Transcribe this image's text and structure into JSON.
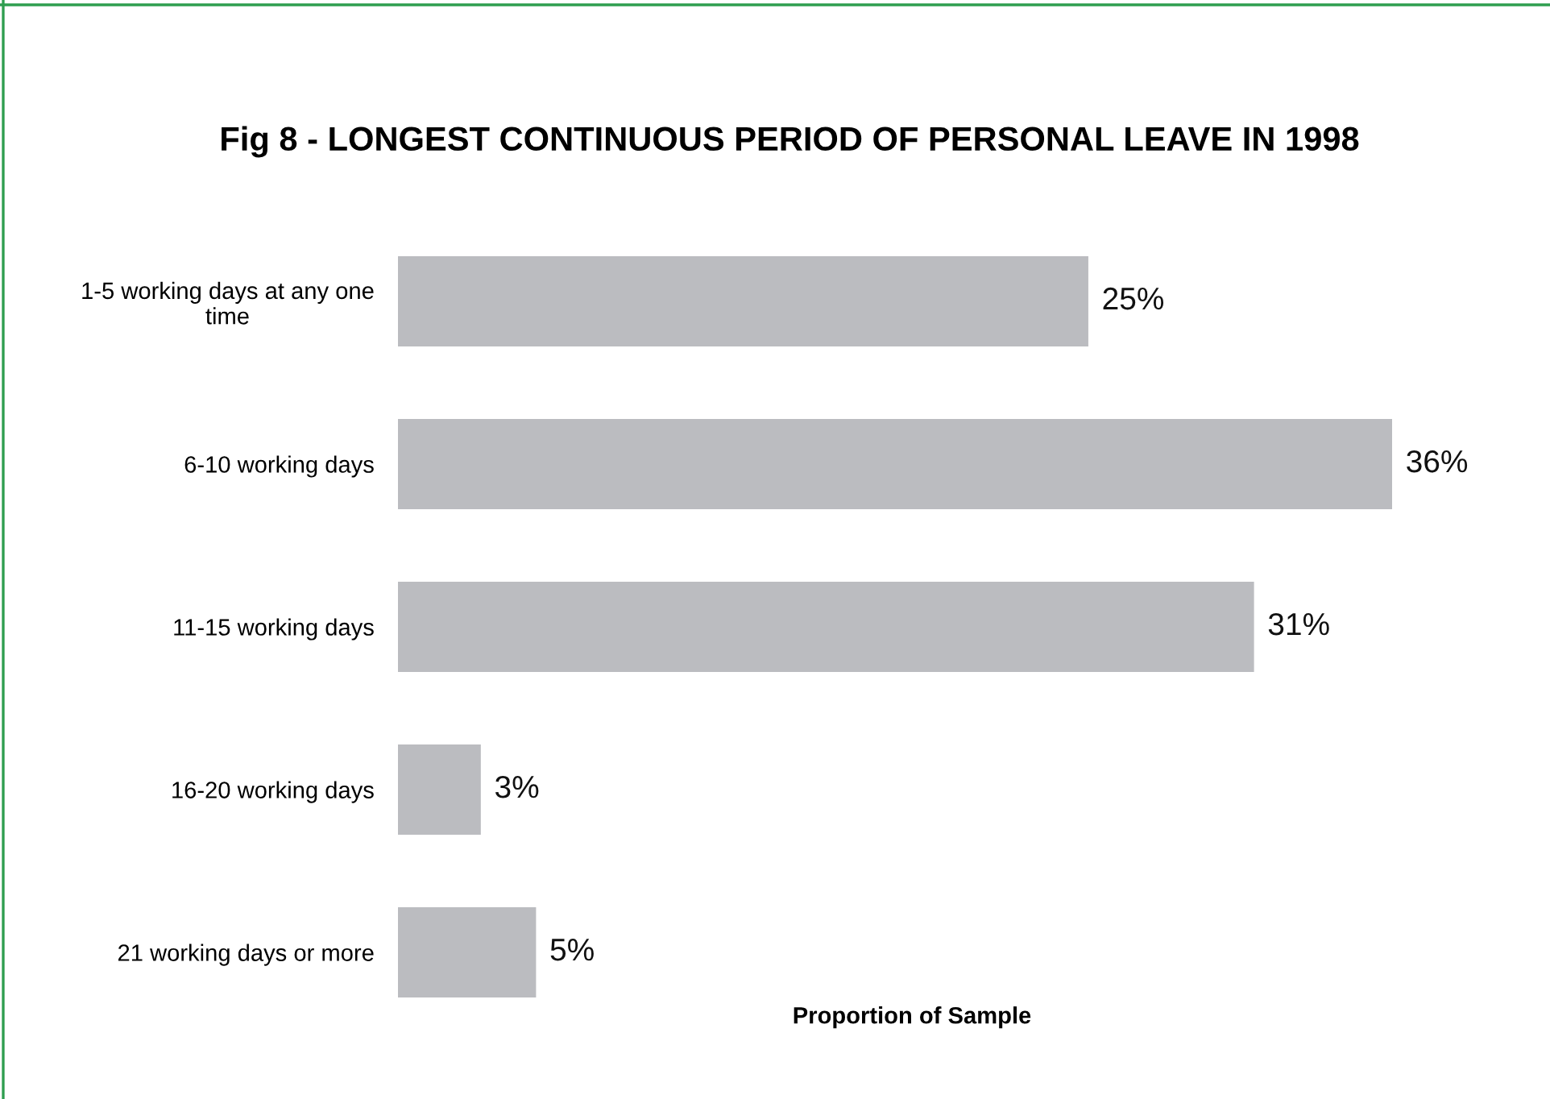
{
  "chart_data": {
    "type": "bar",
    "orientation": "horizontal",
    "title": "Fig 8 - LONGEST CONTINUOUS PERIOD OF PERSONAL LEAVE IN 1998",
    "xlabel": "Proportion of Sample",
    "categories": [
      "1-5 working days at any one\ntime",
      "6-10 working days",
      "11-15 working days",
      "16-20 working days",
      "21 working days or more"
    ],
    "values": [
      25,
      36,
      31,
      3,
      5
    ],
    "value_labels": [
      "25%",
      "36%",
      "31%",
      "3%",
      "5%"
    ],
    "color": "#bbbcc0",
    "tick_labels": "y"
  }
}
